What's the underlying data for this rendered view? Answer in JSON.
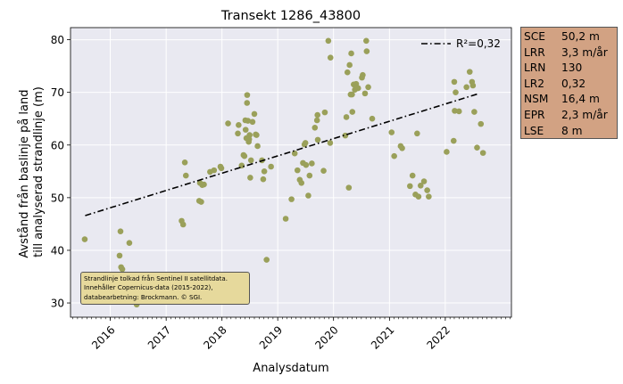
{
  "chart_data": {
    "type": "scatter",
    "title": "Transekt 1286_43800",
    "xlabel": "Analysdatum",
    "ylabel": [
      "Avstånd från baslinje på land",
      "till analyserad strandlinje (m)"
    ],
    "xlim": [
      "2015-04-16",
      "2023-03-10"
    ],
    "ylim": [
      27.3,
      82.3
    ],
    "x_ticks": [
      "2016",
      "2017",
      "2018",
      "2019",
      "2020",
      "2021",
      "2022"
    ],
    "y_ticks": [
      30,
      40,
      50,
      60,
      70,
      80
    ],
    "grid": true,
    "legend": {
      "position": "top-right",
      "entries": [
        {
          "label": "R²=0,32",
          "style": "dash-dot"
        }
      ]
    },
    "colors": {
      "points": "#9aa05a",
      "trend": "#000000",
      "plot_bg": "#e9e9f1",
      "grid": "#ffffff"
    },
    "trend": {
      "x": [
        "2015-07-21",
        "2022-08-12"
      ],
      "y": [
        46.6,
        69.8
      ]
    },
    "points": [
      [
        "2015-07-18",
        42.1
      ],
      [
        "2016-03-02",
        39.0
      ],
      [
        "2016-03-08",
        43.6
      ],
      [
        "2016-03-12",
        36.8
      ],
      [
        "2016-03-20",
        36.4
      ],
      [
        "2016-05-05",
        41.4
      ],
      [
        "2016-06-22",
        29.7
      ],
      [
        "2017-04-12",
        45.6
      ],
      [
        "2017-04-22",
        44.9
      ],
      [
        "2017-05-03",
        56.7
      ],
      [
        "2017-05-10",
        54.2
      ],
      [
        "2017-08-05",
        49.4
      ],
      [
        "2017-08-10",
        52.8
      ],
      [
        "2017-08-18",
        49.2
      ],
      [
        "2017-08-25",
        52.4
      ],
      [
        "2017-09-05",
        52.5
      ],
      [
        "2017-10-15",
        54.9
      ],
      [
        "2017-11-10",
        55.2
      ],
      [
        "2017-12-22",
        55.9
      ],
      [
        "2017-12-28",
        55.6
      ],
      [
        "2018-02-10",
        64.1
      ],
      [
        "2018-04-15",
        62.2
      ],
      [
        "2018-04-20",
        63.8
      ],
      [
        "2018-05-10",
        56.1
      ],
      [
        "2018-05-22",
        58.1
      ],
      [
        "2018-05-28",
        57.9
      ],
      [
        "2018-06-03",
        64.7
      ],
      [
        "2018-06-05",
        62.9
      ],
      [
        "2018-06-10",
        61.3
      ],
      [
        "2018-06-14",
        68.0
      ],
      [
        "2018-06-15",
        69.5
      ],
      [
        "2018-06-20",
        64.6
      ],
      [
        "2018-06-25",
        60.6
      ],
      [
        "2018-06-28",
        61.1
      ],
      [
        "2018-07-01",
        61.9
      ],
      [
        "2018-07-05",
        53.8
      ],
      [
        "2018-07-10",
        57.1
      ],
      [
        "2018-07-20",
        64.4
      ],
      [
        "2018-08-01",
        65.9
      ],
      [
        "2018-08-10",
        62.0
      ],
      [
        "2018-08-15",
        61.9
      ],
      [
        "2018-08-22",
        59.8
      ],
      [
        "2018-09-20",
        57.1
      ],
      [
        "2018-09-28",
        53.5
      ],
      [
        "2018-10-05",
        55.0
      ],
      [
        "2018-10-20",
        38.2
      ],
      [
        "2018-11-18",
        55.9
      ],
      [
        "2019-02-22",
        46.0
      ],
      [
        "2019-04-01",
        49.7
      ],
      [
        "2019-04-22",
        58.4
      ],
      [
        "2019-05-10",
        55.2
      ],
      [
        "2019-05-25",
        53.4
      ],
      [
        "2019-06-05",
        52.8
      ],
      [
        "2019-06-15",
        56.6
      ],
      [
        "2019-06-25",
        60.1
      ],
      [
        "2019-07-01",
        60.4
      ],
      [
        "2019-07-05",
        56.2
      ],
      [
        "2019-07-20",
        50.4
      ],
      [
        "2019-07-28",
        54.2
      ],
      [
        "2019-08-12",
        56.5
      ],
      [
        "2019-09-01",
        63.3
      ],
      [
        "2019-09-15",
        64.7
      ],
      [
        "2019-09-18",
        65.7
      ],
      [
        "2019-09-20",
        61.0
      ],
      [
        "2019-10-28",
        55.1
      ],
      [
        "2019-11-05",
        66.2
      ],
      [
        "2019-11-28",
        79.8
      ],
      [
        "2019-12-10",
        60.4
      ],
      [
        "2019-12-12",
        76.6
      ],
      [
        "2020-03-18",
        61.8
      ],
      [
        "2020-03-25",
        65.3
      ],
      [
        "2020-04-01",
        73.8
      ],
      [
        "2020-04-10",
        51.9
      ],
      [
        "2020-04-15",
        75.2
      ],
      [
        "2020-04-22",
        69.6
      ],
      [
        "2020-04-26",
        77.4
      ],
      [
        "2020-05-01",
        69.6
      ],
      [
        "2020-05-03",
        66.3
      ],
      [
        "2020-05-12",
        71.5
      ],
      [
        "2020-05-20",
        70.5
      ],
      [
        "2020-05-28",
        71.6
      ],
      [
        "2020-06-10",
        70.8
      ],
      [
        "2020-07-05",
        72.8
      ],
      [
        "2020-07-10",
        73.3
      ],
      [
        "2020-07-25",
        69.8
      ],
      [
        "2020-08-02",
        79.8
      ],
      [
        "2020-08-05",
        77.8
      ],
      [
        "2020-08-15",
        71.0
      ],
      [
        "2020-09-10",
        65.0
      ],
      [
        "2021-01-15",
        62.4
      ],
      [
        "2021-02-01",
        57.9
      ],
      [
        "2021-03-15",
        59.8
      ],
      [
        "2021-03-25",
        59.4
      ],
      [
        "2021-05-15",
        52.2
      ],
      [
        "2021-06-01",
        54.2
      ],
      [
        "2021-06-20",
        50.6
      ],
      [
        "2021-07-01",
        62.2
      ],
      [
        "2021-07-10",
        50.2
      ],
      [
        "2021-07-24",
        52.3
      ],
      [
        "2021-08-15",
        53.1
      ],
      [
        "2021-09-05",
        51.4
      ],
      [
        "2021-09-15",
        50.2
      ],
      [
        "2022-01-10",
        58.7
      ],
      [
        "2022-02-25",
        60.8
      ],
      [
        "2022-03-01",
        72.0
      ],
      [
        "2022-03-04",
        66.5
      ],
      [
        "2022-03-10",
        70.0
      ],
      [
        "2022-04-01",
        66.4
      ],
      [
        "2022-05-20",
        71.0
      ],
      [
        "2022-06-10",
        73.9
      ],
      [
        "2022-06-25",
        72.0
      ],
      [
        "2022-07-01",
        71.3
      ],
      [
        "2022-07-10",
        66.3
      ],
      [
        "2022-07-28",
        59.5
      ],
      [
        "2022-08-22",
        64.0
      ],
      [
        "2022-09-05",
        58.5
      ]
    ]
  },
  "stats": [
    {
      "key": "SCE",
      "value": "50,2 m"
    },
    {
      "key": "LRR",
      "value": "3,3 m/år"
    },
    {
      "key": "LRN",
      "value": "130"
    },
    {
      "key": "LR2",
      "value": "0,32"
    },
    {
      "key": "NSM",
      "value": "16,4 m"
    },
    {
      "key": "EPR",
      "value": "2,3 m/år"
    },
    {
      "key": "LSE",
      "value": "8 m"
    }
  ],
  "credit": {
    "line1": "Strandlinje tolkad från Sentinel II satellitdata.",
    "line2": "Innehåller Copernicus-data (2015-2022),",
    "line3": "databearbetning: Brockmann. © SGI."
  }
}
